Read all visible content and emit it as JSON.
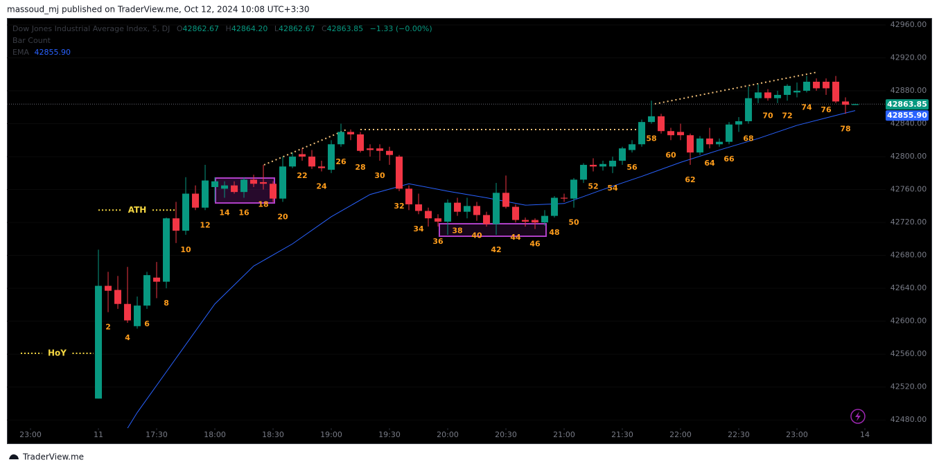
{
  "page": {
    "header": "massoud_mj published on TraderView.me, Oct 12, 2024 10:08 UTC+3:30",
    "footer": "TraderView.me"
  },
  "chart_data": {
    "type": "candlestick",
    "title": "Dow Jones Industrial Average Index, 5, DJ",
    "ohlc_keys": [
      "O",
      "H",
      "L",
      "C"
    ],
    "last_bar_labels": [
      "42862.67",
      "42864.20",
      "42862.67",
      "42863.85"
    ],
    "change": "−1.33 (−0.00%)",
    "up_color": "#089981",
    "down_color": "#f23645",
    "open": [
      42506,
      42643,
      42638,
      42621,
      42594,
      42619,
      42653,
      42648,
      42725,
      42710,
      42755,
      42738,
      42763,
      42761,
      42765,
      42757,
      42772,
      42769,
      42767,
      42749,
      42788,
      42803,
      42800,
      42788,
      42784,
      42815,
      42830,
      42827,
      42810,
      42810,
      42807,
      42800,
      42761,
      42742,
      42734,
      42725,
      42721,
      42744,
      42733,
      42740,
      42729,
      42718,
      42756,
      42739,
      42723,
      42723,
      42720,
      42728,
      42750,
      42749,
      42772,
      42790,
      42788,
      42788,
      42795,
      42808,
      42815,
      42842,
      42849,
      42831,
      42830,
      42826,
      42805,
      42822,
      42815,
      42818,
      42839,
      42843,
      42871,
      42878,
      42871,
      42875,
      42878,
      42880,
      42891,
      42891,
      42891,
      42867,
      42862.67
    ],
    "high": [
      42687,
      42660,
      42655,
      42666,
      42630,
      42660,
      42672,
      42726,
      42745,
      42775,
      42765,
      42790,
      42775,
      42770,
      42770,
      42775,
      42778,
      42790,
      42770,
      42800,
      42805,
      42810,
      42808,
      42795,
      42820,
      42840,
      42833,
      42830,
      42815,
      42815,
      42812,
      42802,
      42765,
      42755,
      42738,
      42730,
      42748,
      42750,
      42750,
      42745,
      42733,
      42768,
      42777,
      42742,
      42726,
      42725,
      42735,
      42752,
      42755,
      42774,
      42792,
      42798,
      42795,
      42800,
      42812,
      42820,
      42845,
      42868,
      42852,
      42835,
      42840,
      42828,
      42825,
      42835,
      42822,
      42842,
      42848,
      42885,
      42888,
      42882,
      42880,
      42888,
      42890,
      42898,
      42895,
      42895,
      42898,
      42872,
      42864.2
    ],
    "low": [
      42506,
      42611,
      42615,
      42598,
      42591,
      42615,
      42628,
      42640,
      42695,
      42705,
      42735,
      42735,
      42745,
      42750,
      42755,
      42750,
      42763,
      42760,
      42745,
      42745,
      42786,
      42795,
      42785,
      42782,
      42780,
      42812,
      42820,
      42805,
      42800,
      42795,
      42790,
      42758,
      42735,
      42730,
      42715,
      42715,
      42705,
      42728,
      42725,
      42722,
      42715,
      42705,
      42737,
      42720,
      42715,
      42712,
      42716,
      42726,
      42745,
      42738,
      42768,
      42782,
      42783,
      42780,
      42790,
      42805,
      42812,
      42840,
      42828,
      42820,
      42820,
      42790,
      42802,
      42810,
      42812,
      42815,
      42830,
      42840,
      42865,
      42868,
      42865,
      42868,
      42872,
      42878,
      42880,
      42875,
      42865,
      42852,
      42862.67
    ],
    "close": [
      42643,
      42637,
      42621,
      42601,
      42619,
      42656,
      42648,
      42725,
      42710,
      42755,
      42738,
      42771,
      42770,
      42765,
      42757,
      42772,
      42767,
      42767,
      42749,
      42788,
      42800,
      42800,
      42788,
      42786,
      42815,
      42830,
      42827,
      42807,
      42808,
      42807,
      42802,
      42761,
      42742,
      42734,
      42725,
      42721,
      42744,
      42733,
      42740,
      42729,
      42718,
      42756,
      42739,
      42723,
      42721,
      42720,
      42728,
      42750,
      42749,
      42772,
      42790,
      42788,
      42791,
      42795,
      42810,
      42815,
      42842,
      42849,
      42831,
      42826,
      42826,
      42805,
      42822,
      42815,
      42818,
      42839,
      42843,
      42871,
      42878,
      42871,
      42875,
      42886,
      42880,
      42891,
      42883,
      42883,
      42867,
      42863,
      42863.85
    ],
    "bar_count_title": "Bar Count",
    "bar_counts": [
      2,
      4,
      6,
      8,
      10,
      12,
      14,
      16,
      18,
      20,
      22,
      24,
      26,
      28,
      30,
      32,
      34,
      36,
      38,
      40,
      42,
      44,
      46,
      48,
      50,
      52,
      54,
      56,
      58,
      60,
      62,
      64,
      66,
      68,
      70,
      72,
      74,
      76,
      78
    ],
    "ema": {
      "name": "EMA",
      "color": "#2962ff",
      "x": [
        3,
        4,
        8,
        12,
        16,
        20,
        24,
        28,
        32,
        36,
        40,
        44,
        48,
        52,
        56,
        60,
        64,
        68,
        72,
        76,
        78
      ],
      "values": [
        42470,
        42489,
        42555,
        42621,
        42667,
        42694,
        42727,
        42754,
        42767,
        42758,
        42750,
        42741,
        42743,
        42760,
        42776,
        42793,
        42808,
        42822,
        42838,
        42850,
        42855.9
      ],
      "value_labels": [
        null,
        null,
        null,
        null,
        null,
        null,
        null,
        null,
        null,
        null,
        null,
        null,
        null,
        null,
        null,
        null,
        null,
        null,
        null,
        null,
        "42855.90"
      ]
    },
    "levels": [
      {
        "label": "ATH",
        "value": 42735,
        "from": 0,
        "to": 8
      },
      {
        "label": "HoY",
        "value": 42561,
        "from": -8,
        "to": -0.5
      }
    ],
    "xlim": [
      -9.43,
      81.14
    ],
    "xticks": [
      {
        "value": -7,
        "label": "23:00"
      },
      {
        "value": 0,
        "label": "11"
      },
      {
        "value": 6,
        "label": "17:30"
      },
      {
        "value": 12,
        "label": "18:00"
      },
      {
        "value": 18,
        "label": "18:30"
      },
      {
        "value": 24,
        "label": "19:00"
      },
      {
        "value": 30,
        "label": "19:30"
      },
      {
        "value": 36,
        "label": "20:00"
      },
      {
        "value": 42,
        "label": "20:30"
      },
      {
        "value": 48,
        "label": "21:00"
      },
      {
        "value": 54,
        "label": "21:30"
      },
      {
        "value": 60,
        "label": "22:00"
      },
      {
        "value": 66,
        "label": "22:30"
      },
      {
        "value": 72,
        "label": "23:00"
      },
      {
        "value": 79,
        "label": "14"
      }
    ],
    "ylim": [
      42470.1,
      42968.4
    ],
    "yticks": [
      {
        "value": 42480,
        "label": "42480.00"
      },
      {
        "value": 42520,
        "label": "42520.00"
      },
      {
        "value": 42560,
        "label": "42560.00"
      },
      {
        "value": 42600,
        "label": "42600.00"
      },
      {
        "value": 42640,
        "label": "42640.00"
      },
      {
        "value": 42680,
        "label": "42680.00"
      },
      {
        "value": 42720,
        "label": "42720.00"
      },
      {
        "value": 42760,
        "label": "42760.00"
      },
      {
        "value": 42800,
        "label": "42800.00"
      },
      {
        "value": 42840,
        "label": "42840.00"
      },
      {
        "value": 42880,
        "label": "42880.00"
      },
      {
        "value": 42920,
        "label": "42920.00"
      },
      {
        "value": 42960,
        "label": "42960.00"
      }
    ]
  }
}
